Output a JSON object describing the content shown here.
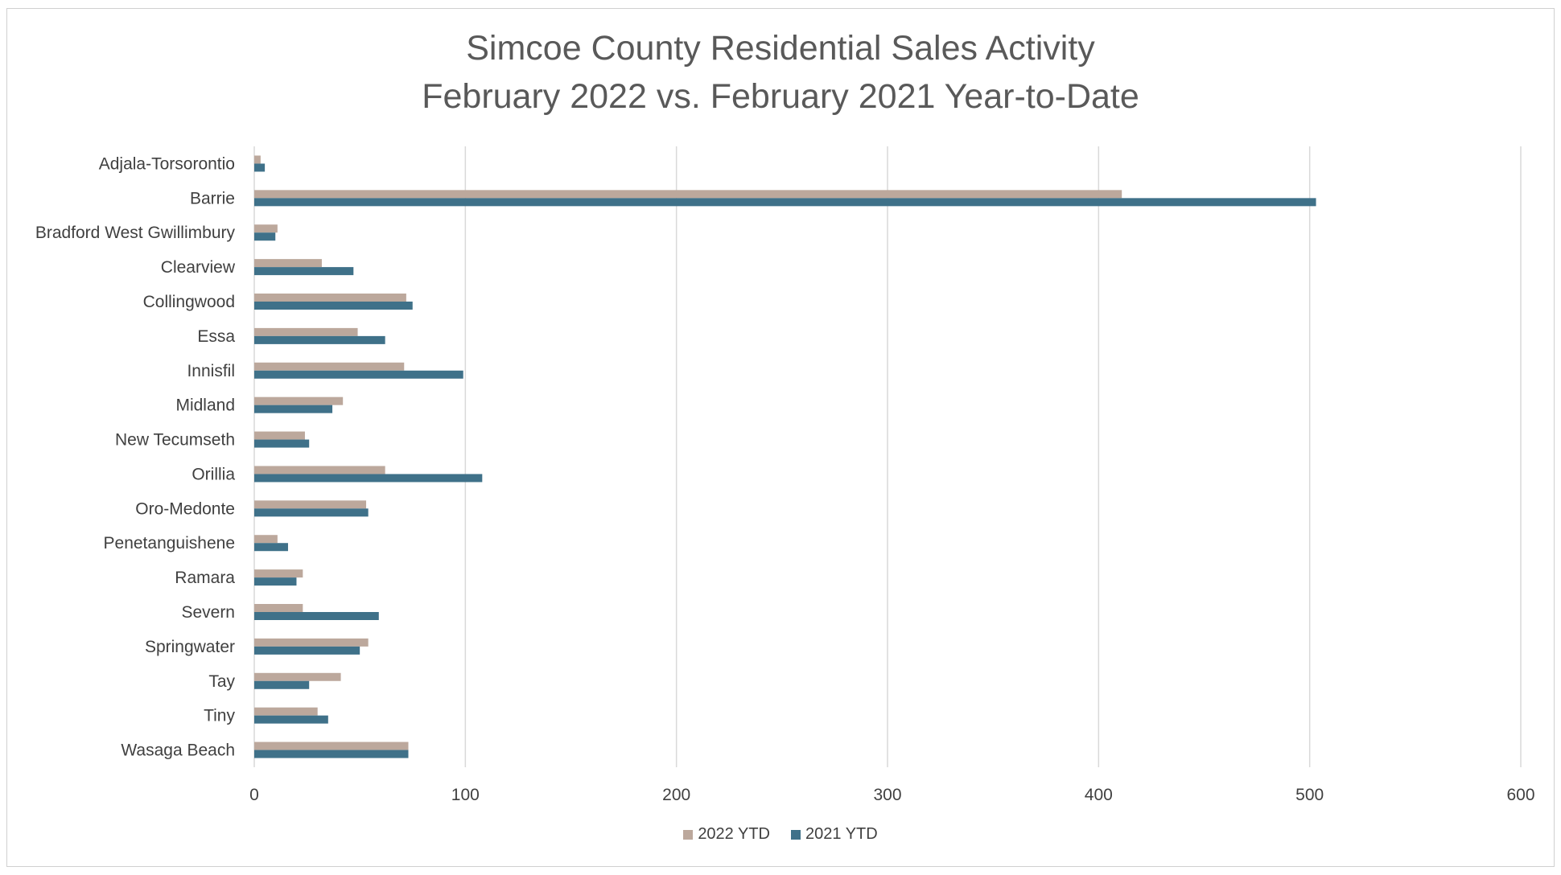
{
  "chart_data": {
    "type": "bar",
    "orientation": "horizontal",
    "title_lines": [
      "Simcoe County Residential Sales Activity",
      "February 2022 vs. February 2021 Year-to-Date"
    ],
    "categories": [
      "Adjala-Torsorontio",
      "Barrie",
      "Bradford West Gwillimbury",
      "Clearview",
      "Collingwood",
      "Essa",
      "Innisfil",
      "Midland",
      "New Tecumseth",
      "Orillia",
      "Oro-Medonte",
      "Penetanguishene",
      "Ramara",
      "Severn",
      "Springwater",
      "Tay",
      "Tiny",
      "Wasaga Beach"
    ],
    "series": [
      {
        "name": "2022 YTD",
        "color": "#bca89c",
        "values": [
          3,
          411,
          11,
          32,
          72,
          49,
          71,
          42,
          24,
          62,
          53,
          11,
          23,
          23,
          54,
          41,
          30,
          73
        ]
      },
      {
        "name": "2021 YTD",
        "color": "#3f7189",
        "values": [
          5,
          503,
          10,
          47,
          75,
          62,
          99,
          37,
          26,
          108,
          54,
          16,
          20,
          59,
          50,
          26,
          35,
          73
        ]
      }
    ],
    "xlim": [
      0,
      600
    ],
    "xticks": [
      0,
      100,
      200,
      300,
      400,
      500,
      600
    ],
    "grid": "vertical",
    "legend_position": "bottom"
  }
}
